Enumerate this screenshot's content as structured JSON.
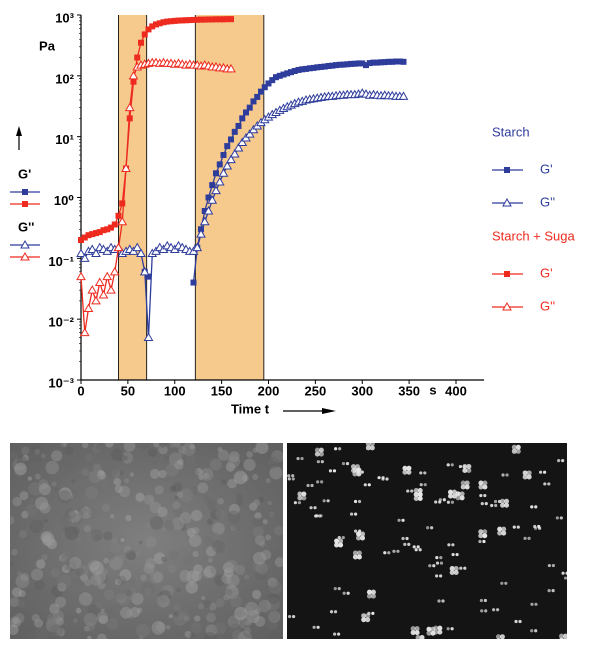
{
  "chart_data": {
    "type": "line",
    "y_label": "Pa",
    "x_label": "Time t",
    "x_unit": "s",
    "log_y": true,
    "xlim": [
      0,
      430
    ],
    "ylim": [
      0.001,
      1000
    ],
    "xticks": [
      0,
      50,
      100,
      150,
      200,
      250,
      300,
      350,
      400
    ],
    "yticks": [
      {
        "value": 0.001,
        "label": "10⁻³"
      },
      {
        "value": 0.01,
        "label": "10⁻²"
      },
      {
        "value": 0.1,
        "label": "10⁻¹"
      },
      {
        "value": 1,
        "label": "10⁰"
      },
      {
        "value": 10,
        "label": "10¹"
      },
      {
        "value": 100,
        "label": "10²"
      },
      {
        "value": 1000,
        "label": "10³"
      }
    ],
    "shaded_regions": [
      [
        40,
        70
      ],
      [
        122,
        195
      ]
    ],
    "shade_color": "#f6c98c",
    "left_legend": [
      "G'",
      "G''"
    ],
    "groups": [
      {
        "title": "Starch",
        "color": "#2e3c9c",
        "series": [
          {
            "name": "G'",
            "marker": "square",
            "x": [
              68,
              72,
              76,
              120,
              124,
              128,
              132,
              136,
              140,
              144,
              148,
              152,
              156,
              160,
              164,
              168,
              172,
              176,
              180,
              184,
              188,
              192,
              196,
              200,
              204,
              208,
              212,
              216,
              220,
              224,
              228,
              232,
              236,
              240,
              244,
              248,
              252,
              256,
              260,
              264,
              268,
              272,
              276,
              280,
              284,
              288,
              292,
              296,
              300,
              304,
              308,
              312,
              316,
              320,
              324,
              328,
              332,
              336,
              340,
              344
            ],
            "values": [
              0.06,
              0.05,
              null,
              0.04,
              0.15,
              0.3,
              0.6,
              1,
              1.6,
              2.5,
              3.5,
              5,
              7,
              9,
              12,
              15,
              20,
              25,
              30,
              38,
              45,
              55,
              65,
              75,
              85,
              95,
              100,
              105,
              110,
              115,
              120,
              125,
              128,
              130,
              133,
              135,
              138,
              140,
              142,
              145,
              147,
              150,
              152,
              153,
              155,
              157,
              158,
              160,
              160,
              150,
              162,
              165,
              165,
              167,
              168,
              170,
              170,
              172,
              172,
              170
            ]
          },
          {
            "name": "G''",
            "marker": "triangle",
            "x": [
              0,
              4,
              8,
              12,
              16,
              20,
              24,
              28,
              32,
              36,
              40,
              44,
              48,
              52,
              56,
              60,
              64,
              68,
              72,
              76,
              80,
              84,
              88,
              92,
              96,
              100,
              104,
              108,
              112,
              116,
              120,
              124,
              128,
              132,
              136,
              140,
              144,
              148,
              152,
              156,
              160,
              164,
              168,
              172,
              176,
              180,
              184,
              188,
              192,
              196,
              200,
              204,
              208,
              212,
              216,
              220,
              224,
              228,
              232,
              236,
              240,
              244,
              248,
              252,
              256,
              260,
              264,
              268,
              272,
              276,
              280,
              284,
              288,
              292,
              296,
              300,
              304,
              308,
              312,
              316,
              320,
              324,
              328,
              332,
              336,
              340,
              344
            ],
            "values": [
              0.12,
              0.1,
              0.13,
              0.14,
              0.12,
              0.15,
              0.14,
              0.13,
              0.15,
              0.14,
              0.15,
              0.12,
              0.13,
              0.14,
              0.13,
              0.15,
              0.12,
              0.06,
              0.005,
              0.12,
              0.13,
              0.15,
              0.14,
              0.16,
              0.15,
              0.14,
              0.16,
              0.15,
              0.14,
              0.13,
              0.13,
              0.15,
              0.25,
              0.4,
              0.6,
              0.9,
              1.3,
              1.8,
              2.5,
              3.3,
              4.2,
              5.2,
              6.5,
              8,
              9.5,
              11,
              13,
              15,
              17,
              19,
              21,
              23,
              25,
              27,
              29,
              31,
              33,
              35,
              37,
              38,
              40,
              41,
              42,
              43,
              44,
              45,
              46,
              46,
              47,
              48,
              48,
              49,
              49,
              49,
              50,
              52,
              50,
              48,
              49,
              48,
              47,
              48,
              47,
              47,
              46,
              46,
              46
            ]
          }
        ]
      },
      {
        "title": "Starch + Suga",
        "color": "#ee2b1f",
        "series": [
          {
            "name": "G'",
            "marker": "square",
            "x": [
              0,
              4,
              8,
              12,
              16,
              20,
              24,
              28,
              32,
              36,
              40,
              44,
              48,
              52,
              56,
              60,
              64,
              68,
              72,
              76,
              80,
              84,
              88,
              92,
              96,
              100,
              104,
              108,
              112,
              116,
              120,
              124,
              128,
              132,
              136,
              140,
              144,
              148,
              152,
              156,
              160
            ],
            "values": [
              0.2,
              0.22,
              0.24,
              0.25,
              0.26,
              0.27,
              0.29,
              0.3,
              0.32,
              0.36,
              0.5,
              0.8,
              3,
              20,
              80,
              200,
              350,
              480,
              580,
              650,
              700,
              730,
              760,
              780,
              790,
              800,
              810,
              815,
              820,
              825,
              830,
              835,
              840,
              840,
              845,
              845,
              850,
              850,
              850,
              855,
              855
            ]
          },
          {
            "name": "G''",
            "marker": "triangle",
            "x": [
              0,
              4,
              8,
              12,
              16,
              20,
              24,
              28,
              32,
              36,
              40,
              44,
              48,
              52,
              56,
              60,
              64,
              68,
              72,
              76,
              80,
              84,
              88,
              92,
              96,
              100,
              104,
              108,
              112,
              116,
              120,
              124,
              128,
              132,
              136,
              140,
              144,
              148,
              152,
              156,
              160
            ],
            "values": [
              0.05,
              0.006,
              0.015,
              0.03,
              0.02,
              0.04,
              0.025,
              0.05,
              0.03,
              0.06,
              0.15,
              0.4,
              3,
              30,
              100,
              140,
              150,
              155,
              160,
              165,
              165,
              160,
              165,
              160,
              160,
              155,
              160,
              155,
              150,
              155,
              150,
              150,
              145,
              150,
              145,
              140,
              140,
              135,
              135,
              130,
              130
            ]
          }
        ]
      }
    ]
  }
}
